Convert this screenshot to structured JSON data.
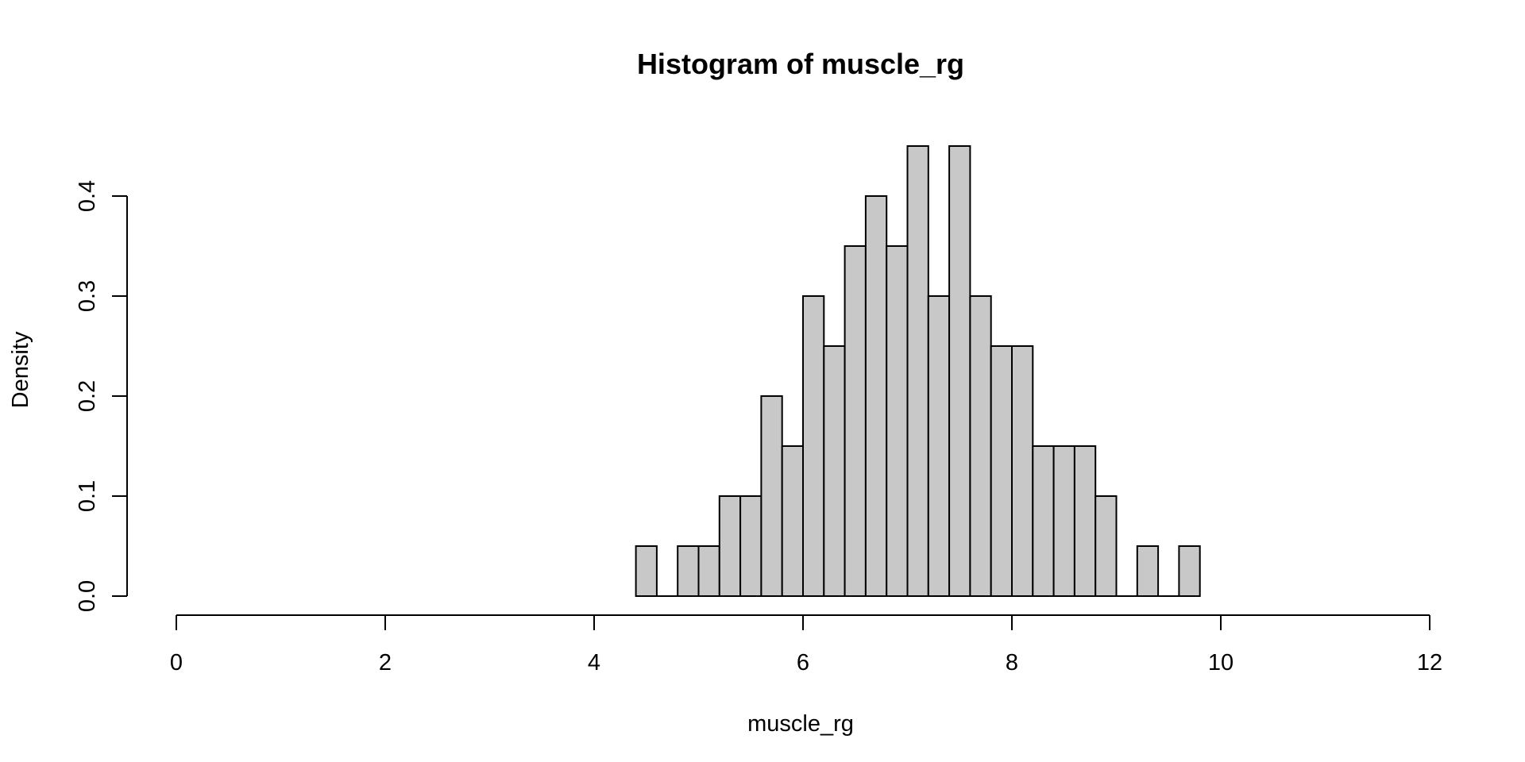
{
  "chart_data": {
    "type": "bar",
    "title": "Histogram of muscle_rg",
    "xlabel": "muscle_rg",
    "ylabel": "Density",
    "xlim": [
      0,
      12
    ],
    "ylim": [
      0,
      0.4
    ],
    "x_ticks": [
      0,
      2,
      4,
      6,
      8,
      10,
      12
    ],
    "y_ticks": [
      0.0,
      0.1,
      0.2,
      0.3,
      0.4
    ],
    "x_tick_labels": [
      "0",
      "2",
      "4",
      "6",
      "8",
      "10",
      "12"
    ],
    "y_tick_labels": [
      "0.0",
      "0.1",
      "0.2",
      "0.3",
      "0.4"
    ],
    "bin_width": 0.2,
    "bins": [
      {
        "start": 4.4,
        "end": 4.6,
        "density": 0.05
      },
      {
        "start": 4.6,
        "end": 4.8,
        "density": 0.0
      },
      {
        "start": 4.8,
        "end": 5.0,
        "density": 0.05
      },
      {
        "start": 5.0,
        "end": 5.2,
        "density": 0.05
      },
      {
        "start": 5.2,
        "end": 5.4,
        "density": 0.1
      },
      {
        "start": 5.4,
        "end": 5.6,
        "density": 0.1
      },
      {
        "start": 5.6,
        "end": 5.8,
        "density": 0.2
      },
      {
        "start": 5.8,
        "end": 6.0,
        "density": 0.15
      },
      {
        "start": 6.0,
        "end": 6.2,
        "density": 0.3
      },
      {
        "start": 6.2,
        "end": 6.4,
        "density": 0.25
      },
      {
        "start": 6.4,
        "end": 6.6,
        "density": 0.35
      },
      {
        "start": 6.6,
        "end": 6.8,
        "density": 0.4
      },
      {
        "start": 6.8,
        "end": 7.0,
        "density": 0.35
      },
      {
        "start": 7.0,
        "end": 7.2,
        "density": 0.45
      },
      {
        "start": 7.2,
        "end": 7.4,
        "density": 0.3
      },
      {
        "start": 7.4,
        "end": 7.6,
        "density": 0.45
      },
      {
        "start": 7.6,
        "end": 7.8,
        "density": 0.3
      },
      {
        "start": 7.8,
        "end": 8.0,
        "density": 0.25
      },
      {
        "start": 8.0,
        "end": 8.2,
        "density": 0.25
      },
      {
        "start": 8.2,
        "end": 8.4,
        "density": 0.15
      },
      {
        "start": 8.4,
        "end": 8.6,
        "density": 0.15
      },
      {
        "start": 8.6,
        "end": 8.8,
        "density": 0.15
      },
      {
        "start": 8.8,
        "end": 9.0,
        "density": 0.1
      },
      {
        "start": 9.0,
        "end": 9.2,
        "density": 0.0
      },
      {
        "start": 9.2,
        "end": 9.4,
        "density": 0.05
      },
      {
        "start": 9.4,
        "end": 9.6,
        "density": 0.0
      },
      {
        "start": 9.6,
        "end": 9.8,
        "density": 0.05
      }
    ],
    "bar_fill": "#c8c8c8",
    "bar_stroke": "#000000",
    "grid": false,
    "legend": "none"
  }
}
